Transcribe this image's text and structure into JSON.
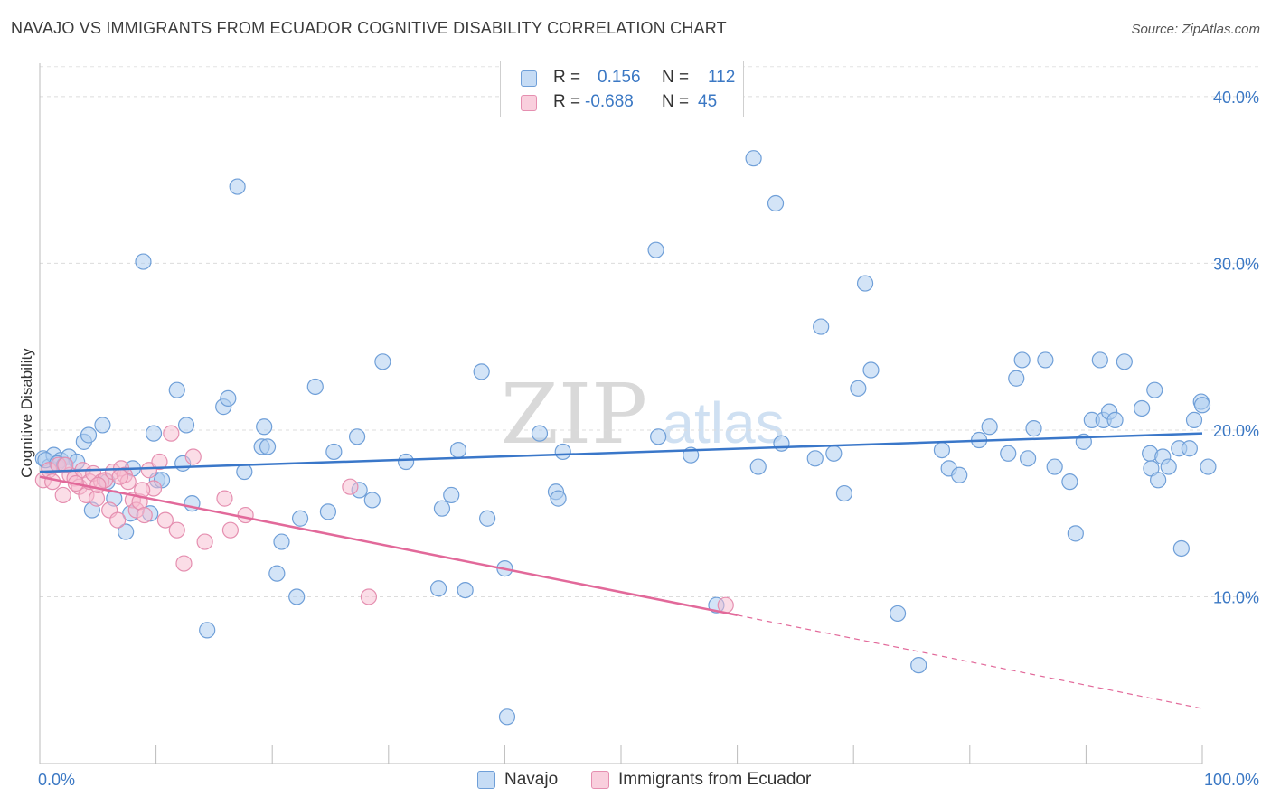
{
  "title": "NAVAJO VS IMMIGRANTS FROM ECUADOR COGNITIVE DISABILITY CORRELATION CHART",
  "source": "Source: ZipAtlas.com",
  "watermark": {
    "zip": "ZIP",
    "atlas": "atlas"
  },
  "legend": {
    "rows": [
      {
        "r_label": "R =",
        "r_value": "0.156",
        "n_label": "N =",
        "n_value": "112",
        "color": "#9dc3ea"
      },
      {
        "r_label": "R =",
        "r_value": "-0.688",
        "n_label": "N =",
        "n_value": "45",
        "color": "#f4a7c1"
      }
    ]
  },
  "bottom_legend": {
    "series1": "Navajo",
    "series2": "Immigrants from Ecuador"
  },
  "chart_data": {
    "type": "scatter",
    "title": "NAVAJO VS IMMIGRANTS FROM ECUADOR COGNITIVE DISABILITY CORRELATION CHART",
    "ylabel": "Cognitive Disability",
    "xlabel": "",
    "xlim": [
      0,
      100
    ],
    "ylim": [
      0,
      42
    ],
    "x_tick_labels": {
      "left": "0.0%",
      "right": "100.0%"
    },
    "y_ticks": [
      {
        "value": 10,
        "label": "10.0%"
      },
      {
        "value": 20,
        "label": "20.0%"
      },
      {
        "value": 30,
        "label": "30.0%"
      },
      {
        "value": 40,
        "label": "40.0%"
      }
    ],
    "colors": {
      "navajo": "#3a77c9",
      "navajo_fill": "#aecdf0",
      "ecuador": "#e2699a",
      "ecuador_fill": "#f7bcd0",
      "axis_label": "#3b78c4"
    },
    "series": [
      {
        "name": "Navajo",
        "r": 0.156,
        "n": 112,
        "trend": {
          "x0": 0,
          "y0": 17.5,
          "x1": 100,
          "y1": 19.8
        },
        "points": [
          [
            0.3,
            18.3
          ],
          [
            0.8,
            17.8
          ],
          [
            1.2,
            18.5
          ],
          [
            1.8,
            18.2
          ],
          [
            2.5,
            18.4
          ],
          [
            3.2,
            18.1
          ],
          [
            3.8,
            19.3
          ],
          [
            4.2,
            19.7
          ],
          [
            4.5,
            15.2
          ],
          [
            5.4,
            20.3
          ],
          [
            5.8,
            16.9
          ],
          [
            6.4,
            15.9
          ],
          [
            7.4,
            13.9
          ],
          [
            7.8,
            15.0
          ],
          [
            8.0,
            17.7
          ],
          [
            8.9,
            30.1
          ],
          [
            9.5,
            15.0
          ],
          [
            9.8,
            19.8
          ],
          [
            10.1,
            17.0
          ],
          [
            10.5,
            17.0
          ],
          [
            11.8,
            22.4
          ],
          [
            12.3,
            18.0
          ],
          [
            12.6,
            20.3
          ],
          [
            13.1,
            15.6
          ],
          [
            14.4,
            8.0
          ],
          [
            15.8,
            21.4
          ],
          [
            16.2,
            21.9
          ],
          [
            17.0,
            34.6
          ],
          [
            17.6,
            17.5
          ],
          [
            19.1,
            19.0
          ],
          [
            19.3,
            20.2
          ],
          [
            19.6,
            19.0
          ],
          [
            20.4,
            11.4
          ],
          [
            20.8,
            13.3
          ],
          [
            22.1,
            10.0
          ],
          [
            22.4,
            14.7
          ],
          [
            23.7,
            22.6
          ],
          [
            24.8,
            15.1
          ],
          [
            25.3,
            18.7
          ],
          [
            27.3,
            19.6
          ],
          [
            27.5,
            16.4
          ],
          [
            28.6,
            15.8
          ],
          [
            29.5,
            24.1
          ],
          [
            31.5,
            18.1
          ],
          [
            34.3,
            10.5
          ],
          [
            34.6,
            15.3
          ],
          [
            35.4,
            16.1
          ],
          [
            36.0,
            18.8
          ],
          [
            36.6,
            10.4
          ],
          [
            38.0,
            23.5
          ],
          [
            38.5,
            14.7
          ],
          [
            40.0,
            11.7
          ],
          [
            40.2,
            2.8
          ],
          [
            43.0,
            19.8
          ],
          [
            44.4,
            16.3
          ],
          [
            44.6,
            15.9
          ],
          [
            45.0,
            18.7
          ],
          [
            53.0,
            30.8
          ],
          [
            53.2,
            19.6
          ],
          [
            56.0,
            18.5
          ],
          [
            58.2,
            9.5
          ],
          [
            61.4,
            36.3
          ],
          [
            61.8,
            17.8
          ],
          [
            63.3,
            33.6
          ],
          [
            63.8,
            19.2
          ],
          [
            66.7,
            18.3
          ],
          [
            67.2,
            26.2
          ],
          [
            68.3,
            18.6
          ],
          [
            69.2,
            16.2
          ],
          [
            70.4,
            22.5
          ],
          [
            71.0,
            28.8
          ],
          [
            71.5,
            23.6
          ],
          [
            73.8,
            9.0
          ],
          [
            75.6,
            5.9
          ],
          [
            77.6,
            18.8
          ],
          [
            78.2,
            17.7
          ],
          [
            79.1,
            17.3
          ],
          [
            80.8,
            19.4
          ],
          [
            81.7,
            20.2
          ],
          [
            83.3,
            18.6
          ],
          [
            84.0,
            23.1
          ],
          [
            84.5,
            24.2
          ],
          [
            85.0,
            18.3
          ],
          [
            85.5,
            20.1
          ],
          [
            86.5,
            24.2
          ],
          [
            87.3,
            17.8
          ],
          [
            88.6,
            16.9
          ],
          [
            89.1,
            13.8
          ],
          [
            89.8,
            19.3
          ],
          [
            90.5,
            20.6
          ],
          [
            91.2,
            24.2
          ],
          [
            91.5,
            20.6
          ],
          [
            92.0,
            21.1
          ],
          [
            92.5,
            20.6
          ],
          [
            93.3,
            24.1
          ],
          [
            95.5,
            18.6
          ],
          [
            95.6,
            17.7
          ],
          [
            95.9,
            22.4
          ],
          [
            96.2,
            17.0
          ],
          [
            96.6,
            18.4
          ],
          [
            97.1,
            17.8
          ],
          [
            98.0,
            18.9
          ],
          [
            98.2,
            12.9
          ],
          [
            98.9,
            18.9
          ],
          [
            99.3,
            20.6
          ],
          [
            99.9,
            21.7
          ],
          [
            100.0,
            21.5
          ],
          [
            100.5,
            17.8
          ],
          [
            94.8,
            21.3
          ],
          [
            0.5,
            18.2
          ],
          [
            1.5,
            18.0
          ],
          [
            2.1,
            17.9
          ]
        ]
      },
      {
        "name": "Immigrants from Ecuador",
        "r": -0.688,
        "n": 45,
        "trend": {
          "x0": 0,
          "y0": 17.2,
          "x1": 60,
          "y1": 8.9
        },
        "trend_dashed": {
          "x0": 60,
          "y0": 8.9,
          "x1": 100,
          "y1": 3.3
        },
        "points": [
          [
            0.3,
            17.0
          ],
          [
            0.8,
            17.6
          ],
          [
            1.1,
            16.9
          ],
          [
            1.6,
            17.9
          ],
          [
            2.0,
            16.1
          ],
          [
            2.6,
            17.3
          ],
          [
            3.0,
            17.1
          ],
          [
            3.4,
            16.6
          ],
          [
            3.7,
            17.6
          ],
          [
            4.0,
            16.1
          ],
          [
            4.3,
            16.9
          ],
          [
            4.6,
            17.4
          ],
          [
            4.9,
            15.9
          ],
          [
            5.3,
            16.9
          ],
          [
            5.6,
            17.0
          ],
          [
            6.0,
            15.2
          ],
          [
            6.3,
            17.5
          ],
          [
            6.7,
            14.6
          ],
          [
            7.0,
            17.7
          ],
          [
            7.3,
            17.3
          ],
          [
            7.6,
            16.9
          ],
          [
            8.0,
            15.8
          ],
          [
            8.3,
            15.2
          ],
          [
            8.6,
            15.7
          ],
          [
            9.0,
            14.9
          ],
          [
            9.4,
            17.6
          ],
          [
            9.8,
            16.5
          ],
          [
            10.3,
            18.1
          ],
          [
            10.8,
            14.6
          ],
          [
            11.3,
            19.8
          ],
          [
            11.8,
            14.0
          ],
          [
            12.4,
            12.0
          ],
          [
            13.2,
            18.4
          ],
          [
            14.2,
            13.3
          ],
          [
            15.9,
            15.9
          ],
          [
            16.4,
            14.0
          ],
          [
            17.7,
            14.9
          ],
          [
            26.7,
            16.6
          ],
          [
            28.3,
            10.0
          ],
          [
            59.0,
            9.5
          ],
          [
            2.2,
            17.9
          ],
          [
            3.1,
            16.8
          ],
          [
            5.0,
            16.7
          ],
          [
            6.9,
            17.2
          ],
          [
            8.8,
            16.4
          ]
        ]
      }
    ]
  }
}
